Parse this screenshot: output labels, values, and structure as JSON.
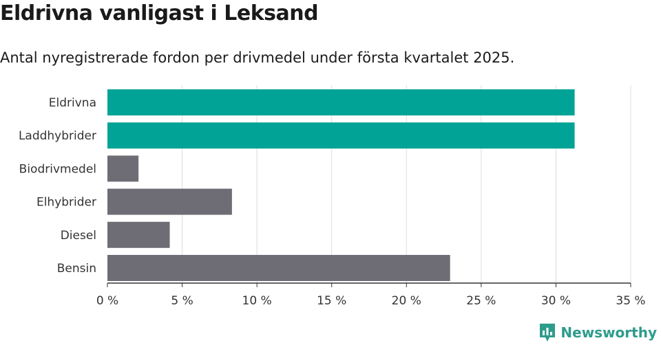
{
  "title": "Eldrivna vanligast i Leksand",
  "subtitle": "Antal nyregistrerade fordon per drivmedel under första kvartalet 2025.",
  "brand": "Newsworthy",
  "colors": {
    "highlight": "#00a396",
    "default": "#6e6d75",
    "grid": "#dddddd",
    "axis": "#333333",
    "brand": "#2e9c8c"
  },
  "chart_data": {
    "type": "bar",
    "orientation": "horizontal",
    "categories": [
      "Eldrivna",
      "Laddhybrider",
      "Biodrivmedel",
      "Elhybrider",
      "Diesel",
      "Bensin"
    ],
    "values": [
      31.25,
      31.25,
      2.08,
      8.33,
      4.17,
      22.92
    ],
    "highlighted": [
      true,
      true,
      false,
      false,
      false,
      false
    ],
    "xlim": [
      0,
      35
    ],
    "xticks": [
      0,
      5,
      10,
      15,
      20,
      25,
      30,
      35
    ],
    "xtick_labels": [
      "0 %",
      "5 %",
      "10 %",
      "15 %",
      "20 %",
      "25 %",
      "30 %",
      "35 %"
    ],
    "grid": true,
    "xlabel": "",
    "ylabel": ""
  }
}
